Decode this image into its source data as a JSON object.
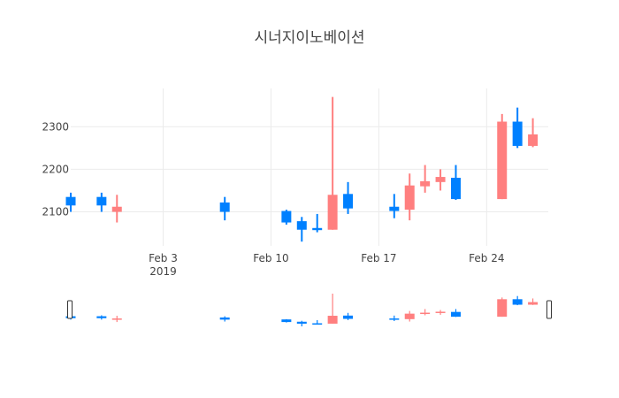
{
  "chart_data": {
    "type": "candlestick",
    "title": "시너지이노베이션",
    "xlabel": "",
    "ylabel": "",
    "x_range": [
      "2019-01-28",
      "2019-02-28"
    ],
    "ylim": [
      2020,
      2390
    ],
    "grid": true,
    "range_slider": true,
    "colors": {
      "increasing": "#0080ff",
      "decreasing": "#ff7f7f"
    },
    "x_ticks": [
      {
        "date": "2019-02-03",
        "label": "Feb 3",
        "sublabel": "2019"
      },
      {
        "date": "2019-02-10",
        "label": "Feb 10",
        "sublabel": ""
      },
      {
        "date": "2019-02-17",
        "label": "Feb 17",
        "sublabel": ""
      },
      {
        "date": "2019-02-24",
        "label": "Feb 24",
        "sublabel": ""
      }
    ],
    "y_ticks": [
      2100,
      2200,
      2300
    ],
    "candles": [
      {
        "date": "2019-01-28",
        "open": 2115,
        "high": 2145,
        "low": 2100,
        "close": 2135
      },
      {
        "date": "2019-01-30",
        "open": 2115,
        "high": 2145,
        "low": 2100,
        "close": 2135
      },
      {
        "date": "2019-01-31",
        "open": 2112,
        "high": 2140,
        "low": 2075,
        "close": 2100
      },
      {
        "date": "2019-02-07",
        "open": 2100,
        "high": 2135,
        "low": 2080,
        "close": 2122
      },
      {
        "date": "2019-02-11",
        "open": 2075,
        "high": 2105,
        "low": 2070,
        "close": 2102
      },
      {
        "date": "2019-02-12",
        "open": 2058,
        "high": 2088,
        "low": 2030,
        "close": 2078
      },
      {
        "date": "2019-02-13",
        "open": 2057,
        "high": 2095,
        "low": 2052,
        "close": 2062
      },
      {
        "date": "2019-02-14",
        "open": 2140,
        "high": 2370,
        "low": 2058,
        "close": 2058
      },
      {
        "date": "2019-02-15",
        "open": 2108,
        "high": 2170,
        "low": 2095,
        "close": 2142
      },
      {
        "date": "2019-02-18",
        "open": 2102,
        "high": 2142,
        "low": 2085,
        "close": 2112
      },
      {
        "date": "2019-02-19",
        "open": 2162,
        "high": 2190,
        "low": 2080,
        "close": 2105
      },
      {
        "date": "2019-02-20",
        "open": 2172,
        "high": 2210,
        "low": 2145,
        "close": 2160
      },
      {
        "date": "2019-02-21",
        "open": 2182,
        "high": 2200,
        "low": 2150,
        "close": 2170
      },
      {
        "date": "2019-02-22",
        "open": 2130,
        "high": 2210,
        "low": 2128,
        "close": 2180
      },
      {
        "date": "2019-02-25",
        "open": 2312,
        "high": 2330,
        "low": 2130,
        "close": 2130
      },
      {
        "date": "2019-02-26",
        "open": 2255,
        "high": 2345,
        "low": 2250,
        "close": 2312
      },
      {
        "date": "2019-02-27",
        "open": 2282,
        "high": 2320,
        "low": 2252,
        "close": 2255
      }
    ]
  }
}
